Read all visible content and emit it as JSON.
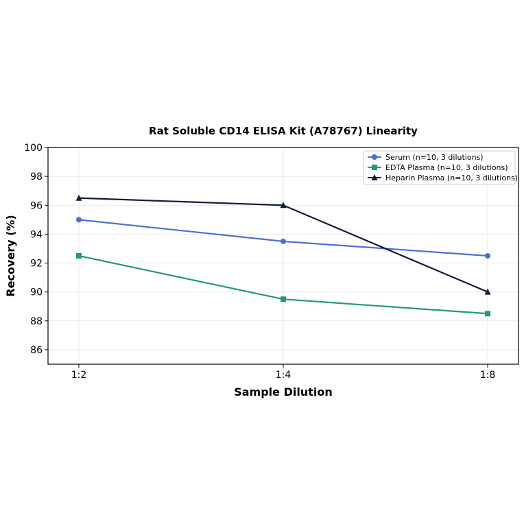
{
  "chart_data": {
    "type": "line",
    "title": "Rat Soluble CD14 ELISA Kit (A78767) Linearity",
    "xlabel": "Sample Dilution",
    "ylabel": "Recovery (%)",
    "categories": [
      "1:2",
      "1:4",
      "1:8"
    ],
    "ylim": [
      85,
      100
    ],
    "yticks": [
      86,
      88,
      90,
      92,
      94,
      96,
      98,
      100
    ],
    "grid": true,
    "legend_position": "top-right",
    "series": [
      {
        "name": "Serum (n=10, 3 dilutions)",
        "values": [
          95,
          93.5,
          92.5
        ],
        "color": "#4a6fd0",
        "marker": "circle"
      },
      {
        "name": "EDTA Plasma (n=10, 3 dilutions)",
        "values": [
          92.5,
          89.5,
          88.5
        ],
        "color": "#239a72",
        "marker": "square"
      },
      {
        "name": "Heparin Plasma (n=10, 3 dilutions)",
        "values": [
          96.5,
          96,
          90
        ],
        "color": "#0f1a3c",
        "marker": "triangle"
      }
    ]
  }
}
